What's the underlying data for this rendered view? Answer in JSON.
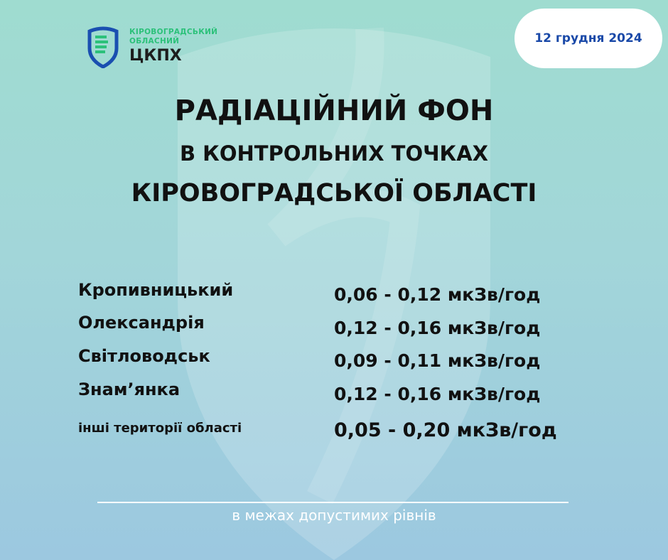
{
  "logo": {
    "line1": "КІРОВОГРАДСЬКИЙ",
    "line2": "ОБЛАСНИЙ",
    "name": "ЦКПХ"
  },
  "date": "12 грудня 2024",
  "title": {
    "line1": "РАДІАЦІЙНИЙ ФОН",
    "line2": "В КОНТРОЛЬНИХ ТОЧКАХ",
    "line3": "КІРОВОГРАДСЬКОЇ ОБЛАСТІ"
  },
  "rows": [
    {
      "place": "Кропивницький",
      "value": "0,06 - 0,12 мкЗв/год"
    },
    {
      "place": "Олександрія",
      "value": "0,12 - 0,16 мкЗв/год"
    },
    {
      "place": "Світловодськ",
      "value": "0,09 - 0,11 мкЗв/год"
    },
    {
      "place": "Знам’янка",
      "value": "0,12 - 0,16 мкЗв/год"
    },
    {
      "place": "інші території області",
      "value": "0,05 - 0,20 мкЗв/год"
    }
  ],
  "footer": "в межах допустимих рівнів",
  "colors": {
    "date_text": "#1a49a8",
    "logo_green": "#2cc17a",
    "logo_blue": "#1a4fb0"
  }
}
